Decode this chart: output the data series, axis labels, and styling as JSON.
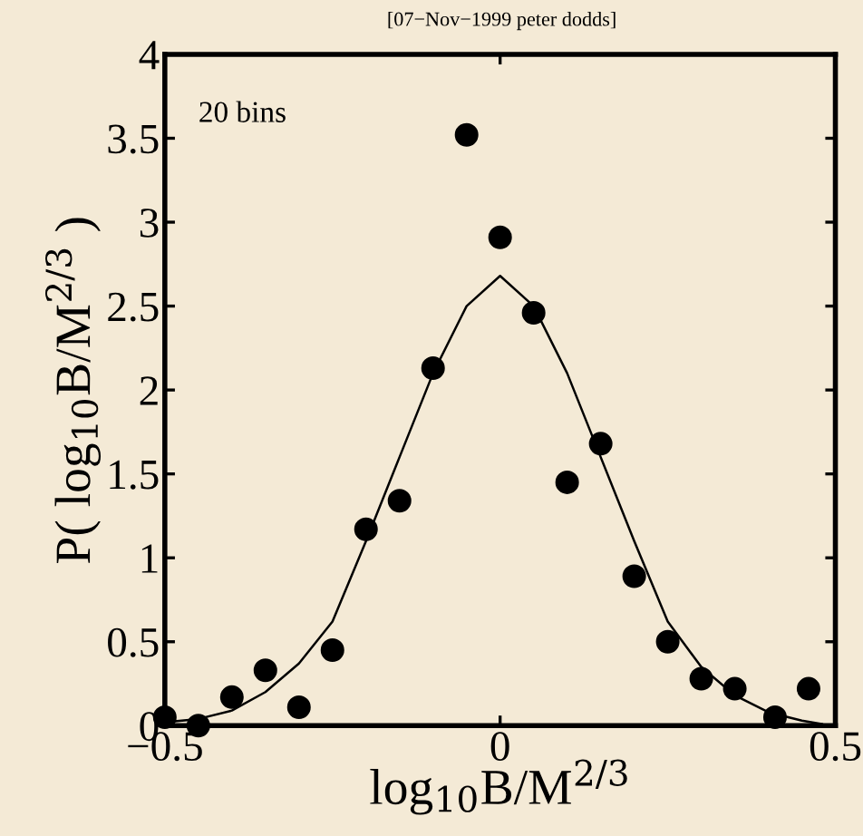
{
  "chart_data": {
    "type": "scatter",
    "xlabel": "log$_{10}$B/M$^{2/3}$",
    "ylabel": "P( log$_{10}$B/M$^{2/3}$ )",
    "annotations": [
      "20 bins",
      "[07−Nov−1999 peter dodds]"
    ],
    "series": [
      {
        "color": "#000000",
        "marker": "circle",
        "x": [
          -0.5,
          -0.45,
          -0.4,
          -0.35,
          -0.3,
          -0.25,
          -0.2,
          -0.15,
          -0.1,
          -0.05,
          0.0,
          0.05,
          0.1,
          0.15,
          0.2,
          0.25,
          0.3,
          0.35,
          0.41,
          0.46
        ],
        "values": [
          0.05,
          0.0,
          0.17,
          0.33,
          0.11,
          0.45,
          1.17,
          1.34,
          2.13,
          3.52,
          2.91,
          2.46,
          1.45,
          1.68,
          0.89,
          0.5,
          0.28,
          0.22,
          0.05,
          0.22
        ]
      },
      {
        "type": "line",
        "color": "#000000",
        "marker": "none",
        "line_style": "solid",
        "x": [
          -0.5,
          -0.45,
          -0.4,
          -0.35,
          -0.3,
          -0.25,
          -0.2,
          -0.15,
          -0.1,
          -0.05,
          0.0,
          0.05,
          0.1,
          0.15,
          0.2,
          0.25,
          0.3,
          0.35,
          0.4,
          0.45,
          0.48
        ],
        "values": [
          0.02,
          0.04,
          0.09,
          0.2,
          0.37,
          0.62,
          1.1,
          1.6,
          2.1,
          2.5,
          2.68,
          2.5,
          2.1,
          1.6,
          1.1,
          0.62,
          0.35,
          0.18,
          0.08,
          0.03,
          0.01
        ]
      }
    ],
    "xlim": [
      -0.5,
      0.5
    ],
    "xticks": [
      -0.5,
      0,
      0.5
    ],
    "ylim": [
      0,
      4
    ],
    "yticks": [
      0,
      0.5,
      1,
      1.5,
      2,
      2.5,
      3,
      3.5,
      4
    ],
    "grid": false,
    "legend": false
  }
}
